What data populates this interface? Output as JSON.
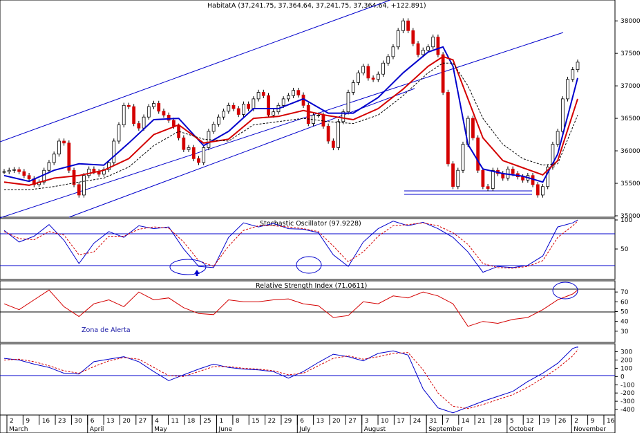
{
  "chart_data": [
    {
      "type": "candlestick",
      "title": "HabitatA (37,241.75, 37,364.64, 37,241.75, 37,364.64, +122.891)",
      "ylim": [
        35000,
        38300
      ],
      "yticks": [
        35000,
        35500,
        36000,
        36500,
        37000,
        37500,
        38000
      ],
      "x_day_range": [
        0,
        115
      ],
      "series": [
        {
          "name": "",
          "color": "#d40000",
          "x": [
            0,
            1,
            2,
            3,
            4,
            5,
            6,
            7,
            8,
            9,
            10,
            11,
            12,
            13,
            14,
            15,
            16,
            17,
            18,
            19,
            20,
            21,
            22,
            23,
            24,
            25,
            26,
            27,
            28,
            29,
            30,
            31,
            32,
            33,
            34,
            35,
            36,
            37,
            38,
            39,
            40,
            41,
            42,
            43,
            44,
            45,
            46,
            47,
            48,
            49,
            50,
            51,
            52,
            53,
            54,
            55,
            56,
            57,
            58,
            59,
            60,
            61,
            62,
            63,
            64,
            65,
            66,
            67,
            68,
            69,
            70,
            71,
            72,
            73,
            74,
            75,
            76,
            77,
            78,
            79,
            80,
            81,
            82,
            83,
            84,
            85,
            86,
            87,
            88,
            89,
            90,
            91,
            92,
            93,
            94,
            95,
            96,
            97,
            98,
            99,
            100,
            101,
            102,
            103,
            104,
            105,
            106,
            107,
            108,
            109,
            110,
            111,
            112,
            113,
            114,
            115
          ],
          "y": [
            35680,
            35700,
            35710,
            35680,
            35620,
            35570,
            35480,
            35520,
            35700,
            35820,
            35950,
            36150,
            36120,
            35700,
            35480,
            35320,
            35620,
            35720,
            35680,
            35640,
            35710,
            35820,
            36150,
            36400,
            36700,
            36680,
            36420,
            36350,
            36520,
            36680,
            36730,
            36610,
            36550,
            36470,
            36380,
            36200,
            36020,
            36050,
            35880,
            35820,
            36050,
            36300,
            36410,
            36520,
            36610,
            36700,
            36650,
            36560,
            36720,
            36650,
            36800,
            36900,
            36850,
            36550,
            36600,
            36700,
            36800,
            36850,
            36930,
            36860,
            36700,
            36420,
            36550,
            36550,
            36380,
            36150,
            36050,
            36450,
            36600,
            36900,
            37050,
            37200,
            37300,
            37120,
            37100,
            37180,
            37350,
            37450,
            37600,
            37850,
            38000,
            37850,
            37650,
            37480,
            37550,
            37600,
            37750,
            37480,
            36900,
            35800,
            35450,
            35700,
            36100,
            36500,
            36200,
            35700,
            35450,
            35420,
            35700,
            35650,
            35580,
            35720,
            35650,
            35600,
            35550,
            35620,
            35480,
            35320,
            35450,
            35750,
            36100,
            36300,
            36800,
            37100,
            37250,
            37364.64
          ]
        },
        {
          "name": "",
          "color": "#0000cc",
          "x": [
            0,
            5,
            10,
            15,
            20,
            25,
            30,
            35,
            40,
            45,
            50,
            55,
            60,
            65,
            70,
            75,
            80,
            85,
            88,
            90,
            93,
            96,
            100,
            104,
            108,
            111,
            115
          ],
          "y": [
            35620,
            35530,
            35700,
            35800,
            35780,
            36120,
            36480,
            36500,
            36080,
            36300,
            36650,
            36650,
            36800,
            36580,
            36580,
            36820,
            37200,
            37520,
            37600,
            37300,
            36100,
            35720,
            35650,
            35610,
            35520,
            35950,
            37120
          ]
        },
        {
          "name": "",
          "color": "#d40000",
          "x": [
            0,
            5,
            10,
            15,
            20,
            25,
            30,
            35,
            40,
            45,
            50,
            55,
            60,
            65,
            70,
            75,
            80,
            85,
            88,
            90,
            93,
            96,
            100,
            104,
            108,
            111,
            115
          ],
          "y": [
            35520,
            35470,
            35580,
            35620,
            35700,
            35880,
            36250,
            36400,
            36120,
            36180,
            36500,
            36530,
            36620,
            36540,
            36480,
            36650,
            36950,
            37300,
            37450,
            37400,
            36800,
            36200,
            35850,
            35740,
            35630,
            35850,
            36800
          ]
        },
        {
          "name": "",
          "color": "#000000",
          "x": [
            0,
            5,
            10,
            15,
            20,
            25,
            30,
            35,
            40,
            45,
            50,
            55,
            60,
            65,
            70,
            75,
            80,
            85,
            88,
            90,
            93,
            96,
            100,
            104,
            108,
            111,
            115
          ],
          "y": [
            35400,
            35400,
            35450,
            35520,
            35580,
            35750,
            36080,
            36300,
            36180,
            36150,
            36400,
            36450,
            36500,
            36450,
            36420,
            36550,
            36850,
            37200,
            37350,
            37350,
            37000,
            36500,
            36100,
            35880,
            35780,
            35800,
            36550
          ]
        }
      ]
    },
    {
      "type": "line",
      "title": "Stochastic Oscillator (97.9228)",
      "ylim": [
        0,
        100
      ],
      "yticks": [
        50,
        100
      ],
      "x_day_range": [
        0,
        115
      ],
      "series": [
        {
          "name": "",
          "color": "#0000cc",
          "x": [
            0,
            3,
            6,
            9,
            12,
            15,
            18,
            21,
            24,
            27,
            30,
            33,
            36,
            39,
            42,
            45,
            48,
            51,
            54,
            57,
            60,
            63,
            66,
            69,
            72,
            75,
            78,
            81,
            84,
            87,
            90,
            93,
            96,
            99,
            102,
            105,
            108,
            111,
            114,
            117,
            120
          ],
          "y": [
            82,
            62,
            72,
            92,
            65,
            25,
            60,
            80,
            70,
            90,
            85,
            88,
            50,
            20,
            18,
            70,
            95,
            88,
            94,
            85,
            84,
            78,
            40,
            20,
            62,
            85,
            98,
            90,
            96,
            85,
            70,
            45,
            10,
            20,
            18,
            22,
            38,
            88,
            95,
            100,
            100
          ]
        },
        {
          "name": "",
          "color": "#d40000",
          "x": [
            0,
            3,
            6,
            9,
            12,
            15,
            18,
            21,
            24,
            27,
            30,
            33,
            36,
            39,
            42,
            45,
            48,
            51,
            54,
            57,
            60,
            63,
            66,
            69,
            72,
            75,
            78,
            81,
            84,
            87,
            90,
            93,
            96,
            99,
            102,
            105,
            108,
            111,
            114,
            117,
            120
          ],
          "y": [
            80,
            68,
            66,
            80,
            74,
            40,
            45,
            72,
            72,
            84,
            88,
            86,
            62,
            30,
            20,
            55,
            82,
            90,
            90,
            88,
            85,
            80,
            55,
            28,
            45,
            72,
            90,
            92,
            95,
            90,
            78,
            58,
            25,
            18,
            17,
            20,
            30,
            70,
            90,
            98,
            99
          ]
        }
      ]
    },
    {
      "type": "line",
      "title": "Relative Strength Index (71.0611)",
      "ylim": [
        20,
        80
      ],
      "yticks": [
        30,
        40,
        50,
        60,
        70
      ],
      "x_day_range": [
        0,
        115
      ],
      "annotation": "Zona de Alerta",
      "series": [
        {
          "name": "",
          "color": "#d40000",
          "x": [
            0,
            3,
            6,
            9,
            12,
            15,
            18,
            21,
            24,
            27,
            30,
            33,
            36,
            39,
            42,
            45,
            48,
            51,
            54,
            57,
            60,
            63,
            66,
            69,
            72,
            75,
            78,
            81,
            84,
            87,
            90,
            93,
            96,
            99,
            102,
            105,
            108,
            111,
            114,
            117,
            120
          ],
          "y": [
            58,
            52,
            62,
            72,
            55,
            45,
            58,
            62,
            55,
            70,
            62,
            64,
            54,
            48,
            47,
            62,
            60,
            60,
            62,
            63,
            58,
            56,
            44,
            46,
            60,
            58,
            66,
            64,
            70,
            66,
            58,
            35,
            40,
            38,
            42,
            44,
            52,
            62,
            68,
            72,
            71
          ]
        }
      ]
    },
    {
      "type": "line",
      "title": "",
      "ylim": [
        -450,
        380
      ],
      "yticks": [
        300,
        200,
        100,
        0,
        -100,
        -200,
        -300,
        -400
      ],
      "x_day_range": [
        0,
        115
      ],
      "series": [
        {
          "name": "",
          "color": "#0000cc",
          "x": [
            0,
            3,
            6,
            9,
            12,
            15,
            18,
            21,
            24,
            27,
            30,
            33,
            36,
            39,
            42,
            45,
            48,
            51,
            54,
            57,
            60,
            63,
            66,
            69,
            72,
            75,
            78,
            81,
            84,
            87,
            90,
            93,
            96,
            99,
            102,
            105,
            108,
            111,
            114,
            117,
            120
          ],
          "y": [
            220,
            200,
            150,
            110,
            40,
            30,
            180,
            210,
            240,
            180,
            60,
            -50,
            20,
            90,
            150,
            110,
            90,
            80,
            60,
            -20,
            60,
            170,
            270,
            240,
            190,
            280,
            310,
            260,
            -150,
            -380,
            -440,
            -370,
            -300,
            -240,
            -180,
            -60,
            40,
            160,
            340,
            360,
            350
          ]
        },
        {
          "name": "",
          "color": "#d40000",
          "x": [
            0,
            3,
            6,
            9,
            12,
            15,
            18,
            21,
            24,
            27,
            30,
            33,
            36,
            39,
            42,
            45,
            48,
            51,
            54,
            57,
            60,
            63,
            66,
            69,
            72,
            75,
            78,
            81,
            84,
            87,
            90,
            93,
            96,
            99,
            102,
            105,
            108,
            111,
            114,
            117,
            120
          ],
          "y": [
            200,
            210,
            180,
            130,
            70,
            40,
            120,
            190,
            230,
            210,
            110,
            10,
            0,
            60,
            120,
            120,
            100,
            90,
            70,
            20,
            40,
            130,
            220,
            250,
            210,
            240,
            280,
            290,
            80,
            -200,
            -360,
            -390,
            -340,
            -280,
            -220,
            -130,
            -20,
            100,
            250,
            320,
            330
          ]
        }
      ]
    }
  ],
  "x_axis": {
    "day_ticks": [
      "2",
      "9",
      "16",
      "23",
      "30",
      "6",
      "13",
      "20",
      "27",
      "4",
      "11",
      "18",
      "25",
      "1",
      "8",
      "15",
      "22",
      "29",
      "6",
      "13",
      "20",
      "27",
      "3",
      "10",
      "17",
      "24",
      "31",
      "7",
      "14",
      "21",
      "28",
      "5",
      "12",
      "19",
      "26",
      "2",
      "9",
      "16"
    ],
    "months": [
      "March",
      "April",
      "May",
      "June",
      "July",
      "August",
      "September",
      "October",
      "November"
    ]
  },
  "colors": {
    "up": "#ffffff",
    "down": "#d40000",
    "blue": "#0000cc",
    "red": "#d40000",
    "grid": "#000000"
  }
}
